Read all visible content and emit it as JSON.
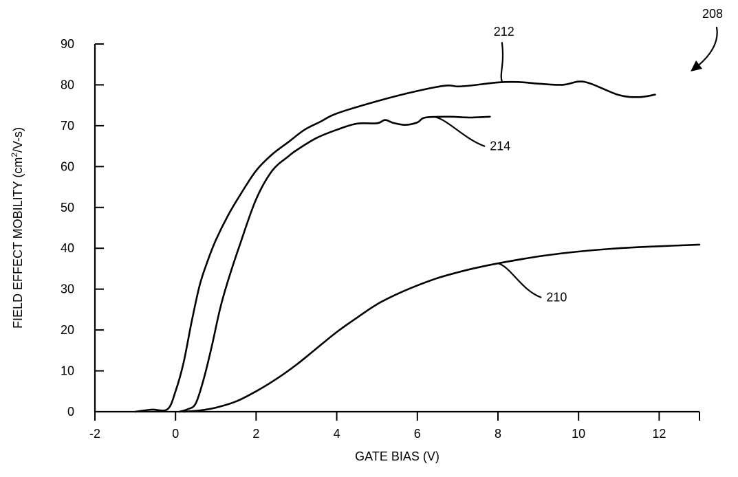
{
  "chart_data": {
    "type": "line",
    "title": "",
    "xlabel": "GATE BIAS (V)",
    "ylabel": "FIELD EFFECT MOBILITY (cm²/V-s)",
    "ylabel_parts": {
      "before": "FIELD EFFECT MOBILITY (cm",
      "sup": "2",
      "after": "/V-s)"
    },
    "xlim": [
      -2,
      13
    ],
    "ylim": [
      0,
      90
    ],
    "x_ticks": [
      -2,
      0,
      2,
      4,
      6,
      8,
      10,
      12
    ],
    "y_ticks": [
      0,
      10,
      20,
      30,
      40,
      50,
      60,
      70,
      80,
      90
    ],
    "grid": false,
    "figure_label": "208",
    "series": [
      {
        "name": "212",
        "points": [
          [
            -1.0,
            0.0
          ],
          [
            -0.6,
            0.5
          ],
          [
            -0.2,
            0.6
          ],
          [
            0.0,
            5
          ],
          [
            0.2,
            12
          ],
          [
            0.4,
            22
          ],
          [
            0.6,
            31
          ],
          [
            0.8,
            37
          ],
          [
            1.0,
            42
          ],
          [
            1.3,
            48
          ],
          [
            1.6,
            53
          ],
          [
            2.0,
            59
          ],
          [
            2.4,
            63
          ],
          [
            2.8,
            66
          ],
          [
            3.2,
            69
          ],
          [
            3.6,
            71
          ],
          [
            4.0,
            73
          ],
          [
            5.0,
            76
          ],
          [
            6.0,
            78.5
          ],
          [
            6.7,
            79.8
          ],
          [
            7.0,
            79.6
          ],
          [
            7.3,
            79.8
          ],
          [
            8.0,
            80.6
          ],
          [
            8.5,
            80.7
          ],
          [
            9.0,
            80.3
          ],
          [
            9.6,
            80.0
          ],
          [
            10.0,
            80.8
          ],
          [
            10.3,
            80.3
          ],
          [
            11.0,
            77.5
          ],
          [
            11.5,
            77.0
          ],
          [
            11.9,
            77.6
          ]
        ]
      },
      {
        "name": "214",
        "points": [
          [
            0.1,
            0.0
          ],
          [
            0.3,
            0.6
          ],
          [
            0.5,
            2
          ],
          [
            0.7,
            8
          ],
          [
            0.9,
            16
          ],
          [
            1.1,
            25
          ],
          [
            1.3,
            32
          ],
          [
            1.6,
            41
          ],
          [
            2.0,
            52
          ],
          [
            2.4,
            59
          ],
          [
            2.8,
            62.5
          ],
          [
            3.0,
            64
          ],
          [
            3.5,
            67
          ],
          [
            4.0,
            69
          ],
          [
            4.5,
            70.5
          ],
          [
            5.0,
            70.6
          ],
          [
            5.2,
            71.4
          ],
          [
            5.4,
            70.7
          ],
          [
            5.7,
            70.2
          ],
          [
            6.0,
            70.8
          ],
          [
            6.2,
            72.0
          ],
          [
            6.8,
            72.2
          ],
          [
            7.3,
            72.0
          ],
          [
            7.8,
            72.2
          ]
        ]
      },
      {
        "name": "210",
        "points": [
          [
            0.2,
            0.0
          ],
          [
            0.6,
            0.3
          ],
          [
            1.0,
            1.0
          ],
          [
            1.5,
            2.5
          ],
          [
            2.0,
            5.0
          ],
          [
            2.5,
            8.0
          ],
          [
            3.0,
            11.5
          ],
          [
            3.5,
            15.5
          ],
          [
            4.0,
            19.5
          ],
          [
            4.5,
            23.0
          ],
          [
            5.0,
            26.3
          ],
          [
            5.5,
            28.8
          ],
          [
            6.0,
            30.9
          ],
          [
            6.5,
            32.7
          ],
          [
            7.0,
            34.1
          ],
          [
            7.5,
            35.3
          ],
          [
            8.0,
            36.3
          ],
          [
            9.0,
            38.0
          ],
          [
            10.0,
            39.2
          ],
          [
            11.0,
            40.0
          ],
          [
            12.0,
            40.5
          ],
          [
            13.0,
            40.9
          ]
        ]
      }
    ],
    "annotations": [
      {
        "text": "212",
        "target": [
          8.1,
          80.8
        ],
        "label_at": [
          8.15,
          93.0
        ]
      },
      {
        "text": "214",
        "target": [
          6.45,
          72.1
        ],
        "label_at": [
          7.8,
          65.0
        ]
      },
      {
        "text": "210",
        "target": [
          8.0,
          36.3
        ],
        "label_at": [
          9.2,
          28.0
        ]
      }
    ]
  }
}
